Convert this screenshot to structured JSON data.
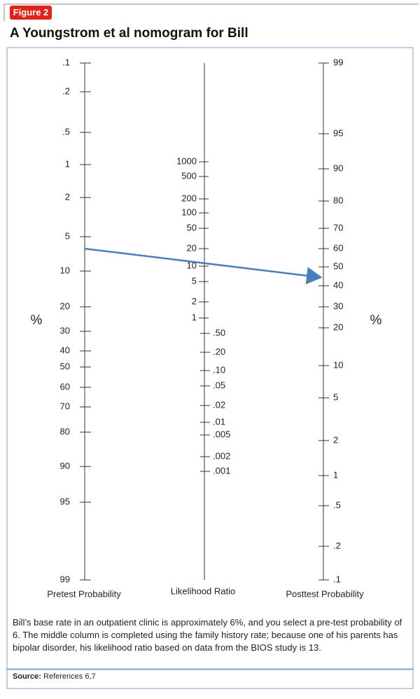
{
  "figure_label": "Figure 2",
  "title": "A Youngstrom et al nomogram for Bill",
  "pretest": {
    "label": "Pretest Probability",
    "ticks": [
      ".1",
      ".2",
      ".5",
      "1",
      "2",
      "5",
      "10",
      "20",
      "30",
      "40",
      "50",
      "60",
      "70",
      "80",
      "90",
      "95",
      "99"
    ]
  },
  "likelihood": {
    "label": "Likelihood Ratio",
    "ticks": [
      "1000",
      "500",
      "200",
      "100",
      "50",
      "20",
      "10",
      "5",
      "2",
      "1",
      ".50",
      ".20",
      ".10",
      ".05",
      ".02",
      ".01",
      ".005",
      ".002",
      ".001"
    ]
  },
  "posttest": {
    "label": "Posttest Probability",
    "ticks": [
      "99",
      "95",
      "90",
      "80",
      "70",
      "60",
      "50",
      "40",
      "30",
      "20",
      "10",
      "5",
      "2",
      "1",
      ".5",
      ".2",
      ".1"
    ]
  },
  "unit": "%",
  "caption": "Bill’s base rate in an outpatient clinic is approximately 6%, and you select a pre-test probability of 6. The middle column is completed using the family history rate; because one of his parents has bipolar disorder, his likelihood ratio based on data from the BIOS study is 13.",
  "source": {
    "label": "Source:",
    "text": "References 6,7"
  }
}
